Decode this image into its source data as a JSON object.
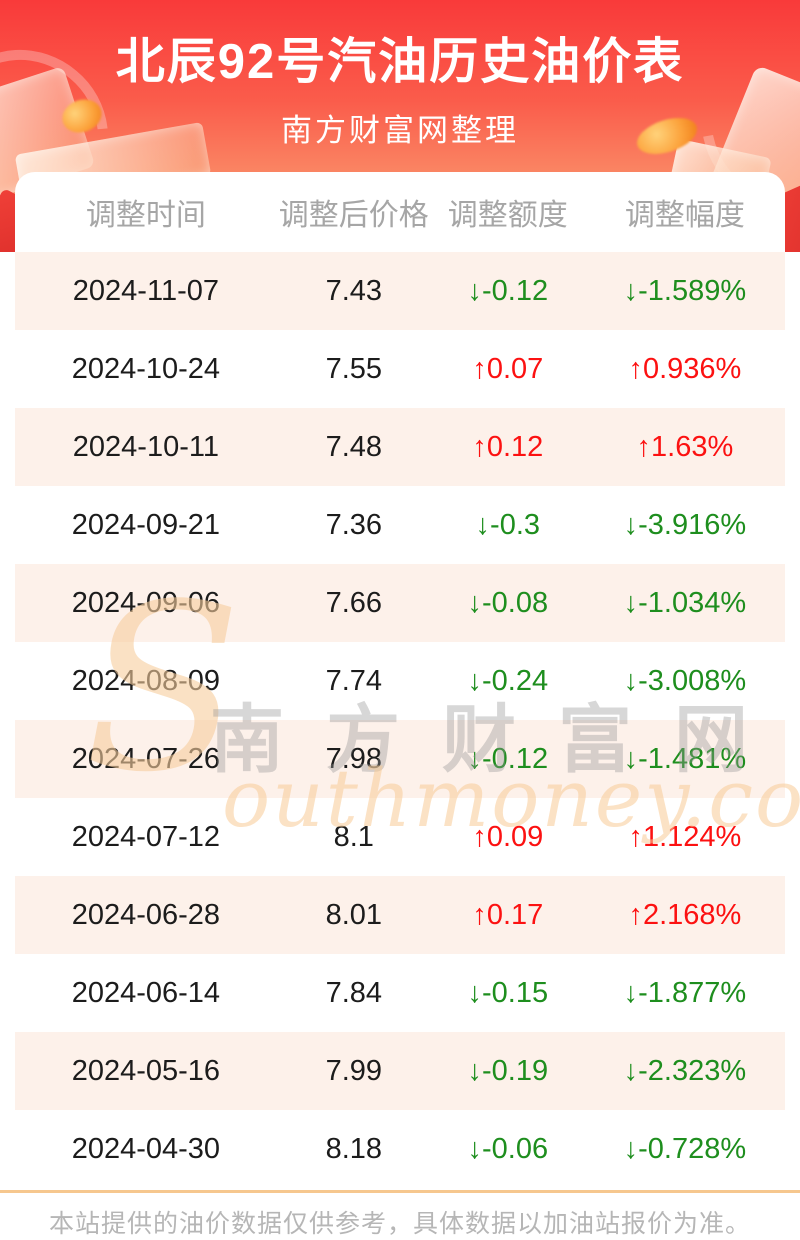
{
  "header": {
    "title": "北辰92号汽油历史油价表",
    "subtitle": "南方财富网整理"
  },
  "table": {
    "columns": [
      "调整时间",
      "调整后价格",
      "调整额度",
      "调整幅度"
    ],
    "arrow_up": "↑",
    "arrow_down": "↓",
    "rows": [
      {
        "date": "2024-11-07",
        "price": "7.43",
        "change": "-0.12",
        "pct": "-1.589%",
        "dir": "down"
      },
      {
        "date": "2024-10-24",
        "price": "7.55",
        "change": "0.07",
        "pct": "0.936%",
        "dir": "up"
      },
      {
        "date": "2024-10-11",
        "price": "7.48",
        "change": "0.12",
        "pct": "1.63%",
        "dir": "up"
      },
      {
        "date": "2024-09-21",
        "price": "7.36",
        "change": "-0.3",
        "pct": "-3.916%",
        "dir": "down"
      },
      {
        "date": "2024-09-06",
        "price": "7.66",
        "change": "-0.08",
        "pct": "-1.034%",
        "dir": "down"
      },
      {
        "date": "2024-08-09",
        "price": "7.74",
        "change": "-0.24",
        "pct": "-3.008%",
        "dir": "down"
      },
      {
        "date": "2024-07-26",
        "price": "7.98",
        "change": "-0.12",
        "pct": "-1.481%",
        "dir": "down"
      },
      {
        "date": "2024-07-12",
        "price": "8.1",
        "change": "0.09",
        "pct": "1.124%",
        "dir": "up"
      },
      {
        "date": "2024-06-28",
        "price": "8.01",
        "change": "0.17",
        "pct": "2.168%",
        "dir": "up"
      },
      {
        "date": "2024-06-14",
        "price": "7.84",
        "change": "-0.15",
        "pct": "-1.877%",
        "dir": "down"
      },
      {
        "date": "2024-05-16",
        "price": "7.99",
        "change": "-0.19",
        "pct": "-2.323%",
        "dir": "down"
      },
      {
        "date": "2024-04-30",
        "price": "8.18",
        "change": "-0.06",
        "pct": "-0.728%",
        "dir": "down"
      }
    ]
  },
  "watermark": {
    "initial": "S",
    "cn": "南方财富网",
    "en": "outhmoney.com"
  },
  "footer": {
    "note": "本站提供的油价数据仅供参考，具体数据以加油站报价为准。"
  },
  "colors": {
    "banner_gradient_top": "#f93a3a",
    "banner_gradient_bottom": "#fbc294",
    "row_stripe": "#fdf1ea",
    "up_red": "#fc1111",
    "down_green": "#1e8e1e",
    "header_text": "#a6a6a6",
    "footer_divider": "#f6c78e",
    "footer_text": "#b6b6b6"
  },
  "chart_data": {
    "type": "table",
    "title": "北辰92号汽油历史油价表",
    "subtitle": "南方财富网整理",
    "columns": [
      "调整时间",
      "调整后价格",
      "调整额度",
      "调整幅度"
    ],
    "rows": [
      [
        "2024-11-07",
        "7.43",
        "↓-0.12",
        "↓-1.589%"
      ],
      [
        "2024-10-24",
        "7.55",
        "↑0.07",
        "↑0.936%"
      ],
      [
        "2024-10-11",
        "7.48",
        "↑0.12",
        "↑1.63%"
      ],
      [
        "2024-09-21",
        "7.36",
        "↓-0.3",
        "↓-3.916%"
      ],
      [
        "2024-09-06",
        "7.66",
        "↓-0.08",
        "↓-1.034%"
      ],
      [
        "2024-08-09",
        "7.74",
        "↓-0.24",
        "↓-3.008%"
      ],
      [
        "2024-07-26",
        "7.98",
        "↓-0.12",
        "↓-1.481%"
      ],
      [
        "2024-07-12",
        "8.1",
        "↑0.09",
        "↑1.124%"
      ],
      [
        "2024-06-28",
        "8.01",
        "↑0.17",
        "↑2.168%"
      ],
      [
        "2024-06-14",
        "7.84",
        "↓-0.15",
        "↓-1.877%"
      ],
      [
        "2024-05-16",
        "7.99",
        "↓-0.19",
        "↓-2.323%"
      ],
      [
        "2024-04-30",
        "8.18",
        "↓-0.06",
        "↓-0.728%"
      ]
    ]
  }
}
